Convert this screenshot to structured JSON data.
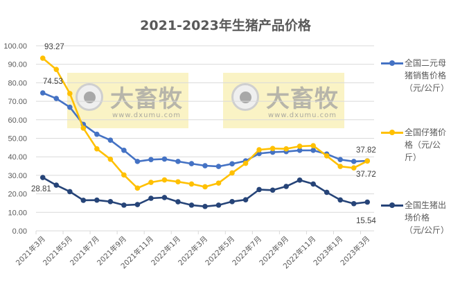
{
  "chart_data": {
    "type": "line",
    "title": "2021-2023年生猪产品价格",
    "xlabel": "",
    "ylabel": "",
    "ylim": [
      0,
      100
    ],
    "yticks": [
      "0.00",
      "10.00",
      "20.00",
      "30.00",
      "40.00",
      "50.00",
      "60.00",
      "70.00",
      "80.00",
      "90.00",
      "100.00"
    ],
    "grid": true,
    "legend_position": "right",
    "x": [
      "2021年3月",
      "2021年4月",
      "2021年5月",
      "2021年6月",
      "2021年7月",
      "2021年8月",
      "2021年9月",
      "2021年10月",
      "2021年11月",
      "2021年12月",
      "2022年1月",
      "2022年2月",
      "2022年3月",
      "2022年4月",
      "2022年5月",
      "2022年6月",
      "2022年7月",
      "2022年8月",
      "2022年9月",
      "2022年10月",
      "2022年11月",
      "2022年12月",
      "2023年1月",
      "2023年2月",
      "2023年3月"
    ],
    "xtick_labels": [
      "2021年3月",
      "2021年5月",
      "2021年7月",
      "2021年9月",
      "2021年11月",
      "2022年1月",
      "2022年3月",
      "2022年5月",
      "2022年7月",
      "2022年9月",
      "2022年11月",
      "2023年1月",
      "2023年3月"
    ],
    "series": [
      {
        "name": "全国二元母猪销售价格（元/公斤）",
        "color": "#4472C4",
        "values": [
          74.53,
          71.5,
          66.8,
          57.5,
          52.2,
          49.0,
          43.5,
          37.5,
          38.5,
          38.8,
          37.5,
          36.3,
          35.2,
          34.8,
          36.2,
          37.8,
          41.8,
          42.5,
          42.8,
          43.5,
          43.5,
          41.5,
          38.5,
          37.5,
          37.82
        ],
        "labels": {
          "first": "74.53",
          "last": "37.82"
        }
      },
      {
        "name": "全国仔猪价格（元/公斤）",
        "color": "#FFC000",
        "values": [
          93.27,
          87.2,
          74.2,
          55.5,
          44.3,
          38.7,
          30.2,
          23.1,
          26.2,
          27.5,
          26.5,
          25.3,
          23.8,
          25.8,
          31.3,
          36.5,
          43.8,
          44.5,
          44.3,
          45.7,
          46.0,
          40.5,
          34.8,
          34.0,
          37.72
        ],
        "labels": {
          "first": "93.27",
          "last": "37.72"
        }
      },
      {
        "name": "全国生猪出场价格（元/公斤）",
        "color": "#264478",
        "values": [
          28.81,
          24.7,
          21.2,
          16.5,
          16.6,
          15.8,
          13.9,
          14.2,
          17.6,
          18.0,
          15.7,
          13.9,
          13.2,
          13.9,
          15.8,
          16.8,
          22.3,
          22.0,
          24.0,
          27.4,
          25.3,
          20.8,
          16.7,
          14.7,
          15.54
        ],
        "labels": {
          "first": "28.81",
          "last": "15.54"
        }
      }
    ]
  },
  "legend": {
    "items": [
      {
        "label": "全国二元母猪销售价格（元/公斤）",
        "color": "#4472C4"
      },
      {
        "label": "全国仔猪价格（元/公斤）",
        "color": "#FFC000"
      },
      {
        "label": "全国生猪出场价格（元/公斤）",
        "color": "#264478"
      }
    ]
  },
  "watermark": {
    "name": "大畜牧",
    "url": "www.dxumu.com"
  }
}
